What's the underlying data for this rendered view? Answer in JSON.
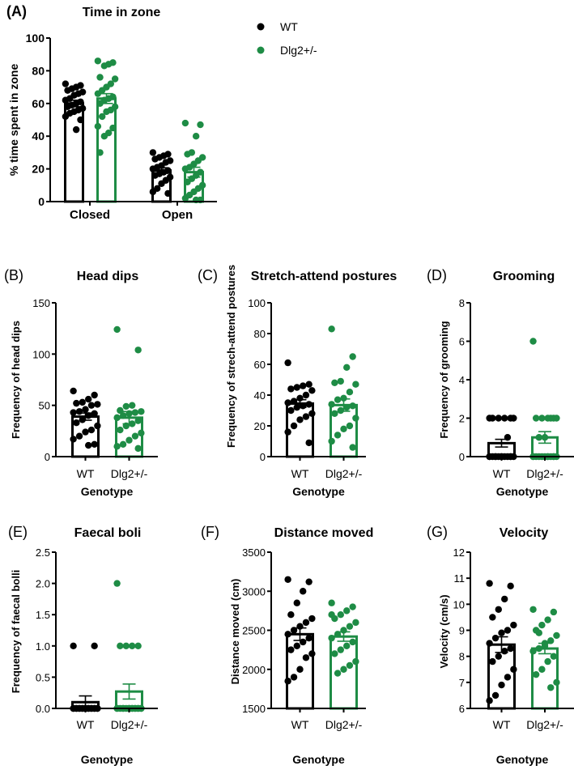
{
  "colors": {
    "wt": "#000000",
    "dlg": "#1e8c45"
  },
  "legend": [
    {
      "label": "WT",
      "series": "wt"
    },
    {
      "label": "Dlg2+/-",
      "series": "dlg"
    }
  ],
  "chart_data": [
    {
      "type": "bar",
      "panel": "(A)",
      "title": "Time in zone",
      "ylabel": "% time spent in zone",
      "xlabel": "",
      "categories": [
        "Closed",
        "Open"
      ],
      "ylim": [
        0,
        100
      ],
      "yticks": [
        "0",
        "20",
        "40",
        "60",
        "80",
        "100"
      ],
      "series": [
        {
          "name": "WT",
          "means": [
            60,
            19
          ],
          "sem": [
            2,
            1.7
          ],
          "points": [
            [
              72,
              71,
              70,
              69,
              68,
              67,
              66,
              65,
              63,
              62,
              61,
              60,
              59,
              58,
              57,
              56,
              55,
              54,
              52,
              50,
              44
            ],
            [
              30,
              29,
              28,
              27,
              26,
              25,
              24,
              22,
              21,
              20,
              19,
              18,
              17,
              16,
              15,
              13,
              11,
              8,
              6,
              5
            ]
          ]
        },
        {
          "name": "Dlg2+/-",
          "means": [
            63,
            18
          ],
          "sem": [
            3,
            3
          ],
          "points": [
            [
              86,
              85,
              84,
              83,
              76,
              75,
              72,
              70,
              68,
              66,
              64,
              63,
              62,
              60,
              58,
              56,
              55,
              52,
              46,
              45,
              42,
              40,
              30
            ],
            [
              48,
              47,
              40,
              30,
              29,
              27,
              25,
              23,
              21,
              20,
              18,
              16,
              14,
              12,
              10,
              8,
              6,
              4,
              2,
              1,
              1
            ]
          ]
        }
      ]
    },
    {
      "type": "bar",
      "panel": "(B)",
      "title": "Head dips",
      "ylabel": "Frequency of head dips",
      "xlabel": "Genotype",
      "categories": [
        "WT",
        "Dlg2+/-"
      ],
      "ylim": [
        0,
        150
      ],
      "yticks": [
        "0",
        "50",
        "100",
        "150"
      ],
      "values": [
        39,
        38
      ],
      "sem": [
        3.5,
        6
      ],
      "points": [
        [
          64,
          60,
          56,
          53,
          52,
          51,
          50,
          46,
          44,
          43,
          42,
          40,
          36,
          33,
          30,
          26,
          24,
          20,
          17,
          12,
          11
        ],
        [
          124,
          104,
          50,
          49,
          45,
          44,
          43,
          42,
          40,
          38,
          35,
          32,
          30,
          26,
          23,
          20,
          16,
          12,
          10,
          8
        ]
      ]
    },
    {
      "type": "bar",
      "panel": "(C)",
      "title": "Stretch-attend postures",
      "ylabel": "Frequency of strech-attend postures",
      "xlabel": "Genotype",
      "categories": [
        "WT",
        "Dlg2+/-"
      ],
      "ylim": [
        0,
        100
      ],
      "yticks": [
        "0",
        "20",
        "40",
        "60",
        "80",
        "100"
      ],
      "values": [
        34.5,
        33.5
      ],
      "sem": [
        2.5,
        4
      ],
      "points": [
        [
          61,
          47,
          46,
          45,
          44,
          43,
          40,
          38,
          36,
          35,
          34,
          33,
          32,
          30,
          28,
          26,
          24,
          20,
          16,
          9
        ],
        [
          83,
          65,
          58,
          49,
          48,
          47,
          42,
          38,
          37,
          34,
          33,
          32,
          30,
          28,
          25,
          20,
          18,
          14,
          10,
          6
        ]
      ]
    },
    {
      "type": "bar",
      "panel": "(D)",
      "title": "Grooming",
      "ylabel": "Frequency of grooming",
      "xlabel": "Genotype",
      "categories": [
        "WT",
        "Dlg2+/-"
      ],
      "ylim": [
        0,
        8
      ],
      "yticks": [
        "0",
        "2",
        "4",
        "6",
        "8"
      ],
      "values": [
        0.7,
        1.0
      ],
      "sem": [
        0.2,
        0.3
      ],
      "points": [
        [
          2,
          2,
          2,
          2,
          2,
          2,
          1,
          0,
          0,
          0,
          0,
          0,
          0,
          0,
          0,
          0,
          0,
          0,
          0,
          0
        ],
        [
          6,
          2,
          2,
          2,
          2,
          2,
          2,
          1,
          1,
          0,
          0,
          0,
          0,
          0,
          0,
          0,
          0,
          0,
          0,
          0,
          0
        ]
      ]
    },
    {
      "type": "bar",
      "panel": "(E)",
      "title": "Faecal boli",
      "ylabel": "Frequency of faecal bolli",
      "xlabel": "Genotype",
      "categories": [
        "WT",
        "Dlg2+/-"
      ],
      "ylim": [
        0,
        2.5
      ],
      "yticks": [
        "0.0",
        "0.5",
        "1.0",
        "1.5",
        "2.0",
        "2.5"
      ],
      "values": [
        0.1,
        0.27
      ],
      "sem": [
        0.1,
        0.12
      ],
      "points": [
        [
          1,
          1,
          0,
          0,
          0,
          0,
          0,
          0,
          0,
          0,
          0,
          0,
          0,
          0,
          0,
          0,
          0,
          0,
          0,
          0
        ],
        [
          2,
          1,
          1,
          1,
          1,
          0,
          0,
          0,
          0,
          0,
          0,
          0,
          0,
          0,
          0,
          0,
          0,
          0,
          0,
          0,
          0
        ]
      ]
    },
    {
      "type": "bar",
      "panel": "(F)",
      "title": "Distance moved",
      "ylabel": "Distance moved (cm)",
      "xlabel": "Genotype",
      "categories": [
        "WT",
        "Dlg2+/-"
      ],
      "ylim": [
        1500,
        3500
      ],
      "yticks": [
        "1500",
        "2000",
        "2500",
        "3000",
        "3500"
      ],
      "values": [
        2450,
        2420
      ],
      "sem": [
        80,
        60
      ],
      "points": [
        [
          3150,
          3120,
          3000,
          2850,
          2700,
          2650,
          2600,
          2550,
          2500,
          2450,
          2400,
          2350,
          2300,
          2250,
          2200,
          2150,
          2000,
          1900,
          1850
        ],
        [
          2850,
          2800,
          2750,
          2700,
          2650,
          2600,
          2550,
          2500,
          2450,
          2400,
          2350,
          2300,
          2250,
          2200,
          2100,
          2050,
          2000,
          1950,
          2700
        ]
      ]
    },
    {
      "type": "bar",
      "panel": "(G)",
      "title": "Velocity",
      "ylabel": "Velocity (cm/s)",
      "xlabel": "Genotype",
      "categories": [
        "WT",
        "Dlg2+/-"
      ],
      "ylim": [
        6,
        12
      ],
      "yticks": [
        "6",
        "7",
        "8",
        "9",
        "10",
        "11",
        "12"
      ],
      "values": [
        8.45,
        8.3
      ],
      "sem": [
        0.3,
        0.2
      ],
      "points": [
        [
          10.8,
          10.7,
          10.2,
          9.8,
          9.5,
          9.2,
          9.0,
          8.9,
          8.7,
          8.5,
          8.3,
          8.2,
          8.0,
          7.8,
          7.5,
          7.2,
          6.9,
          6.5,
          6.3
        ],
        [
          9.8,
          9.7,
          9.4,
          9.2,
          9.0,
          8.8,
          8.6,
          8.5,
          8.3,
          8.2,
          8.0,
          7.8,
          7.5,
          7.3,
          7.0,
          6.8,
          8.4,
          8.9
        ]
      ]
    }
  ]
}
